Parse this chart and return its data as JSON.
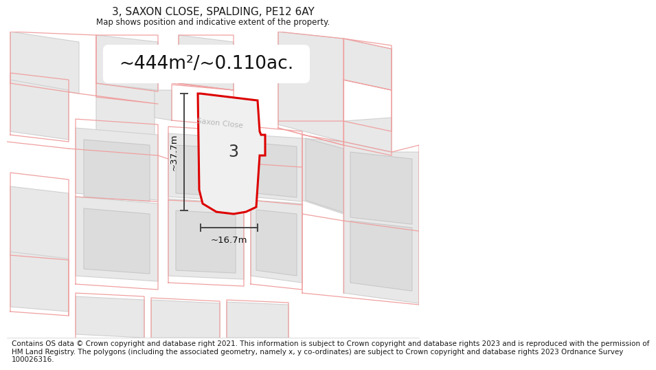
{
  "title": "3, SAXON CLOSE, SPALDING, PE12 6AY",
  "subtitle": "Map shows position and indicative extent of the property.",
  "footer_line1": "Contains OS data © Crown copyright and database right 2021. This information is subject to Crown copyright and database rights 2023 and is reproduced with the permission of",
  "footer_line2": "HM Land Registry. The polygons (including the associated geometry, namely x, y co-ordinates) are subject to Crown copyright and database rights 2023 Ordnance Survey",
  "footer_line3": "100026316.",
  "bg_color": "#ffffff",
  "map_bg_color": "#f5f5f5",
  "road_color": "#ffffff",
  "building_fill": "#e8e8e8",
  "building_stroke": "#d0d0d0",
  "cadastral_color": "#f0a0a0",
  "property_fill": "#f0f0f0",
  "property_stroke": "#dd0000",
  "property_lw": 2.2,
  "street_color": "#b8b8b8",
  "street_label": "Saxon Close",
  "area_label": "~444m²/~0.110ac.",
  "dim_w_label": "~16.7m",
  "dim_h_label": "~37.7m",
  "plot_label": "3",
  "title_fs": 11,
  "subtitle_fs": 8.5,
  "footer_fs": 7.5,
  "area_fs": 19,
  "street_fs": 8,
  "dim_fs": 9.5,
  "plot_fs": 17
}
